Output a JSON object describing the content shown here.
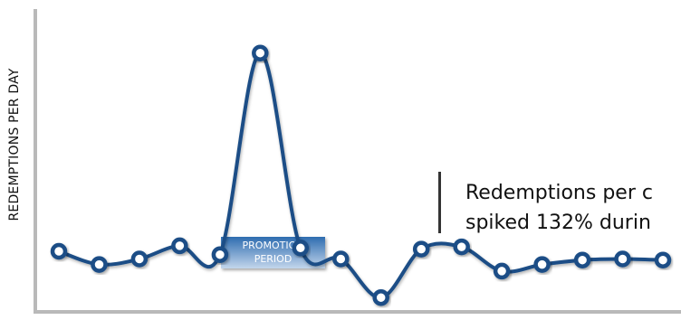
{
  "chart_data": {
    "type": "line",
    "title": "",
    "xlabel": "",
    "ylabel": "REDEMPTIONS PER DAY",
    "x": [
      1,
      2,
      3,
      4,
      5,
      6,
      7,
      8,
      9,
      10,
      11,
      12,
      13,
      14,
      15,
      16
    ],
    "series": [
      {
        "values": [
          80,
          68,
          73,
          85,
          77,
          260,
          83,
          73,
          38,
          82,
          84,
          62,
          68,
          72,
          73,
          72
        ]
      }
    ],
    "ylim": [
      25,
      300
    ],
    "grid": false,
    "legend": "none",
    "annotations": {
      "promotion_label_line1": "PROMOTION",
      "promotion_label_line2": "PERIOD",
      "callout_line1": "Redemptions per c",
      "callout_line2": "spiked 132% durin"
    }
  },
  "colors": {
    "line": "#1a4e86",
    "marker_fill": "#ffffff",
    "marker_stroke": "#1a4e86",
    "axis": "#b9b9b9",
    "promo_top": "#2e6cb0",
    "promo_bottom": "#c3d6ec",
    "callout_bar": "#333333"
  }
}
